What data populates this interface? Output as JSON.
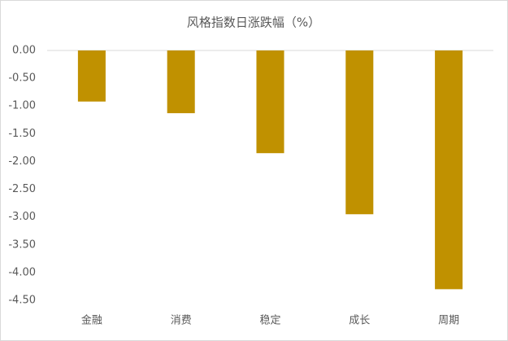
{
  "chart_data": {
    "type": "bar",
    "title": "风格指数日涨跌幅（%）",
    "categories": [
      "金融",
      "消费",
      "稳定",
      "成长",
      "周期"
    ],
    "values": [
      -0.92,
      -1.13,
      -1.85,
      -2.95,
      -4.3
    ],
    "color": "#c09100",
    "ylim": [
      -4.5,
      0
    ],
    "yticks": [
      {
        "value": 0,
        "label": "0.00"
      },
      {
        "value": -0.5,
        "label": "-0.50"
      },
      {
        "value": -1,
        "label": "-1.00"
      },
      {
        "value": -1.5,
        "label": "-1.50"
      },
      {
        "value": -2,
        "label": "-2.00"
      },
      {
        "value": -2.5,
        "label": "-2.50"
      },
      {
        "value": -3,
        "label": "-3.00"
      },
      {
        "value": -3.5,
        "label": "-3.50"
      },
      {
        "value": -4,
        "label": "-4.00"
      },
      {
        "value": -4.5,
        "label": "-4.50"
      }
    ],
    "grid": false
  }
}
